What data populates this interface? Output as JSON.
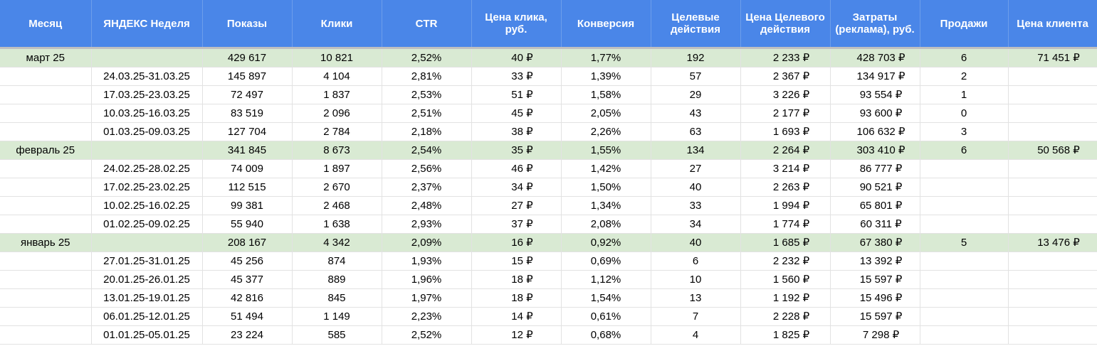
{
  "headers": [
    "Месяц",
    "ЯНДЕКС Неделя",
    "Показы",
    "Клики",
    "CTR",
    "Цена клика, руб.",
    "Конверсия",
    "Целевые действия",
    "Цена Целевого действия",
    "Затраты (реклама), руб.",
    "Продажи",
    "Цена клиента"
  ],
  "rows": [
    {
      "type": "month",
      "cells": [
        "март 25",
        "",
        "429 617",
        "10 821",
        "2,52%",
        "40 ₽",
        "1,77%",
        "192",
        "2 233 ₽",
        "428 703 ₽",
        "6",
        "71 451 ₽"
      ]
    },
    {
      "type": "week",
      "cells": [
        "",
        "24.03.25-31.03.25",
        "145 897",
        "4 104",
        "2,81%",
        "33 ₽",
        "1,39%",
        "57",
        "2 367 ₽",
        "134 917 ₽",
        "2",
        ""
      ]
    },
    {
      "type": "week",
      "cells": [
        "",
        "17.03.25-23.03.25",
        "72 497",
        "1 837",
        "2,53%",
        "51 ₽",
        "1,58%",
        "29",
        "3 226 ₽",
        "93 554 ₽",
        "1",
        ""
      ]
    },
    {
      "type": "week",
      "cells": [
        "",
        "10.03.25-16.03.25",
        "83 519",
        "2 096",
        "2,51%",
        "45 ₽",
        "2,05%",
        "43",
        "2 177 ₽",
        "93 600 ₽",
        "0",
        ""
      ]
    },
    {
      "type": "week",
      "cells": [
        "",
        "01.03.25-09.03.25",
        "127 704",
        "2 784",
        "2,18%",
        "38 ₽",
        "2,26%",
        "63",
        "1 693 ₽",
        "106 632 ₽",
        "3",
        ""
      ]
    },
    {
      "type": "month",
      "cells": [
        "февраль 25",
        "",
        "341 845",
        "8 673",
        "2,54%",
        "35 ₽",
        "1,55%",
        "134",
        "2 264 ₽",
        "303 410 ₽",
        "6",
        "50 568 ₽"
      ]
    },
    {
      "type": "week",
      "cells": [
        "",
        "24.02.25-28.02.25",
        "74 009",
        "1 897",
        "2,56%",
        "46 ₽",
        "1,42%",
        "27",
        "3 214 ₽",
        "86 777 ₽",
        "",
        ""
      ]
    },
    {
      "type": "week",
      "cells": [
        "",
        "17.02.25-23.02.25",
        "112 515",
        "2 670",
        "2,37%",
        "34 ₽",
        "1,50%",
        "40",
        "2 263 ₽",
        "90 521 ₽",
        "",
        ""
      ]
    },
    {
      "type": "week",
      "cells": [
        "",
        "10.02.25-16.02.25",
        "99 381",
        "2 468",
        "2,48%",
        "27 ₽",
        "1,34%",
        "33",
        "1 994 ₽",
        "65 801 ₽",
        "",
        ""
      ]
    },
    {
      "type": "week",
      "cells": [
        "",
        "01.02.25-09.02.25",
        "55 940",
        "1 638",
        "2,93%",
        "37 ₽",
        "2,08%",
        "34",
        "1 774 ₽",
        "60 311 ₽",
        "",
        ""
      ]
    },
    {
      "type": "month",
      "cells": [
        "январь 25",
        "",
        "208 167",
        "4 342",
        "2,09%",
        "16 ₽",
        "0,92%",
        "40",
        "1 685 ₽",
        "67 380 ₽",
        "5",
        "13 476 ₽"
      ]
    },
    {
      "type": "week",
      "cells": [
        "",
        "27.01.25-31.01.25",
        "45 256",
        "874",
        "1,93%",
        "15 ₽",
        "0,69%",
        "6",
        "2 232 ₽",
        "13 392 ₽",
        "",
        ""
      ]
    },
    {
      "type": "week",
      "cells": [
        "",
        "20.01.25-26.01.25",
        "45 377",
        "889",
        "1,96%",
        "18 ₽",
        "1,12%",
        "10",
        "1 560 ₽",
        "15 597 ₽",
        "",
        ""
      ]
    },
    {
      "type": "week",
      "cells": [
        "",
        "13.01.25-19.01.25",
        "42 816",
        "845",
        "1,97%",
        "18 ₽",
        "1,54%",
        "13",
        "1 192 ₽",
        "15 496 ₽",
        "",
        ""
      ]
    },
    {
      "type": "week",
      "cells": [
        "",
        "06.01.25-12.01.25",
        "51 494",
        "1 149",
        "2,23%",
        "14 ₽",
        "0,61%",
        "7",
        "2 228 ₽",
        "15 597 ₽",
        "",
        ""
      ]
    },
    {
      "type": "week",
      "cells": [
        "",
        "01.01.25-05.01.25",
        "23 224",
        "585",
        "2,52%",
        "12 ₽",
        "0,68%",
        "4",
        "1 825 ₽",
        "7 298 ₽",
        "",
        ""
      ]
    }
  ],
  "colors": {
    "header_bg": "#4a86e8",
    "month_row_bg": "#d9ead3"
  }
}
